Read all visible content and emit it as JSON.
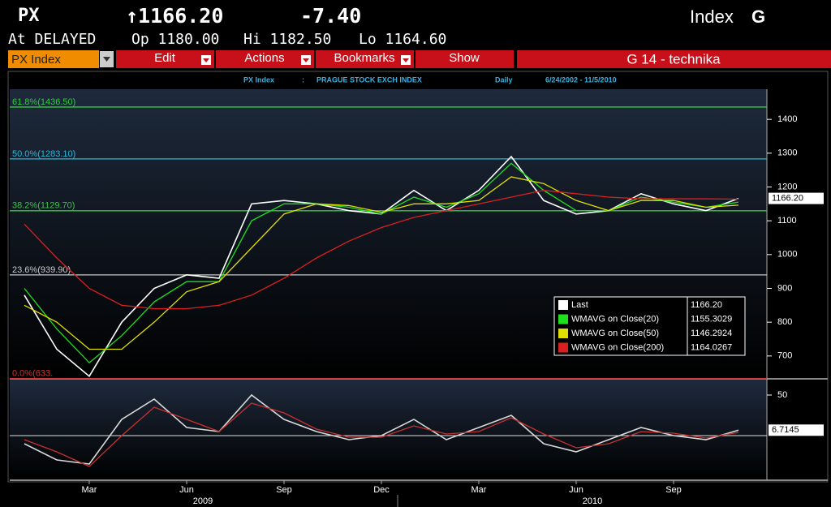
{
  "header": {
    "ticker": "PX",
    "price": "↑1166.20",
    "change": "-7.40",
    "type": "Index",
    "function_key": "G",
    "status": "At DELAYED",
    "open": "Op 1180.00",
    "high": "Hi 1182.50",
    "low": "Lo 1164.60"
  },
  "toolbar": {
    "security": "PX Index",
    "menus": [
      "Edit",
      "Actions",
      "Bookmarks",
      "Show"
    ],
    "page": "G 14 - technika"
  },
  "chart_header": {
    "security": "PX Index",
    "separator": ":",
    "name": "PRAGUE STOCK EXCH INDEX",
    "period": "Daily",
    "range": "6/24/2002 - 11/5/2010"
  },
  "chart_data": [
    {
      "type": "line",
      "categories": [
        null,
        null,
        "Mar",
        null,
        null,
        "Jun",
        null,
        null,
        "Sep",
        null,
        null,
        "Dec",
        null,
        null,
        "Mar",
        null,
        null,
        "Jun",
        null,
        null,
        "Sep",
        null,
        null
      ],
      "x_groups": [
        "2009",
        "2010"
      ],
      "series": [
        {
          "name": "Last",
          "color": "#ffffff",
          "values": [
            880,
            720,
            640,
            800,
            900,
            940,
            930,
            1150,
            1160,
            1150,
            1130,
            1120,
            1190,
            1130,
            1190,
            1290,
            1160,
            1120,
            1130,
            1180,
            1150,
            1130,
            1166.2
          ],
          "value_labels": [
            null,
            null,
            null,
            null,
            null,
            null,
            null,
            null,
            null,
            null,
            null,
            null,
            null,
            null,
            null,
            null,
            null,
            null,
            null,
            null,
            null,
            null,
            "1166.20"
          ]
        },
        {
          "name": "WMAVG on Close(20)",
          "color": "#1ee01e",
          "values": [
            900,
            780,
            680,
            760,
            860,
            920,
            920,
            1100,
            1150,
            1150,
            1140,
            1120,
            1170,
            1140,
            1180,
            1270,
            1190,
            1130,
            1130,
            1170,
            1155,
            1140,
            1155.3029
          ]
        },
        {
          "name": "WMAVG on Close(50)",
          "color": "#e0e000",
          "values": [
            850,
            800,
            720,
            720,
            800,
            890,
            920,
            1020,
            1120,
            1150,
            1145,
            1125,
            1150,
            1150,
            1160,
            1230,
            1210,
            1160,
            1130,
            1160,
            1160,
            1140,
            1146.2924
          ]
        },
        {
          "name": "WMAVG on Close(200)",
          "color": "#d82020",
          "values": [
            1090,
            990,
            900,
            850,
            840,
            840,
            850,
            880,
            930,
            990,
            1040,
            1080,
            1110,
            1130,
            1150,
            1170,
            1190,
            1180,
            1170,
            1165,
            1165,
            1165,
            1164.0267
          ]
        }
      ],
      "levels": [
        {
          "label": "61.8%(1436.50)",
          "value": 1436.5,
          "color": "#2ecc40"
        },
        {
          "label": "50.0%(1283.10)",
          "value": 1283.1,
          "color": "#2ab8d8"
        },
        {
          "label": "38.2%(1129.70)",
          "value": 1129.7,
          "color": "#2ecc40"
        },
        {
          "label": "23.6%(939.90)",
          "value": 939.9,
          "color": "#c8c8c8"
        },
        {
          "label": "0.0%(633.",
          "value": 633,
          "color": "#d03030"
        }
      ],
      "ylim": [
        630,
        1470
      ],
      "yticks": [
        700,
        800,
        900,
        1000,
        1100,
        1200,
        1300,
        1400
      ]
    },
    {
      "type": "line",
      "series": [
        {
          "color": "#d8d8d8",
          "values": [
            -10,
            -30,
            -35,
            20,
            45,
            10,
            5,
            50,
            20,
            5,
            -5,
            0,
            20,
            -5,
            10,
            25,
            -10,
            -20,
            -5,
            10,
            0,
            -5,
            6.7145
          ]
        },
        {
          "color": "#c83030",
          "values": [
            -5,
            -20,
            -38,
            0,
            35,
            20,
            5,
            40,
            28,
            8,
            -2,
            -2,
            12,
            2,
            5,
            22,
            2,
            -15,
            -10,
            5,
            3,
            -3,
            4
          ]
        }
      ],
      "ylim": [
        -53,
        67
      ],
      "yticks": [
        50
      ]
    }
  ]
}
